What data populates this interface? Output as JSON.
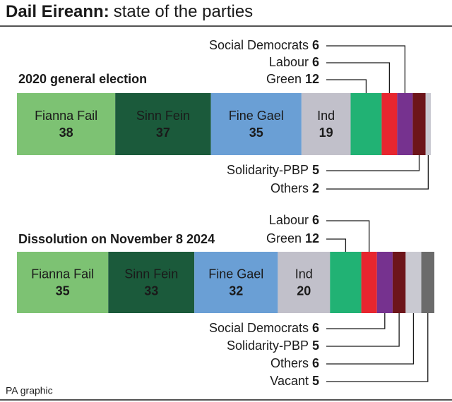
{
  "title": "Dail Eireann:",
  "title_rest": "state of the parties",
  "source": "PA graphic",
  "chart_data": [
    {
      "type": "stacked-bar",
      "title": "2020 general election",
      "categories": [
        "Fianna Fail",
        "Sinn Fein",
        "Fine Gael",
        "Ind",
        "Green",
        "Labour",
        "Social Democrats",
        "Solidarity-PBP",
        "Others"
      ],
      "values": [
        38,
        37,
        35,
        19,
        12,
        6,
        6,
        5,
        2
      ],
      "colors": [
        "#7dc273",
        "#1b5a3b",
        "#6a9fd5",
        "#c1c0ca",
        "#21b274",
        "#e7262f",
        "#76328f",
        "#6d151a",
        "#c9c9d1"
      ]
    },
    {
      "type": "stacked-bar",
      "title": "Dissolution on November 8 2024",
      "categories": [
        "Fianna Fail",
        "Sinn Fein",
        "Fine Gael",
        "Ind",
        "Green",
        "Labour",
        "Social Democrats",
        "Solidarity-PBP",
        "Others",
        "Vacant"
      ],
      "values": [
        35,
        33,
        32,
        20,
        12,
        6,
        6,
        5,
        6,
        5
      ],
      "colors": [
        "#7dc273",
        "#1b5a3b",
        "#6a9fd5",
        "#c1c0ca",
        "#21b274",
        "#e7262f",
        "#76328f",
        "#6d151a",
        "#c9c9d1",
        "#6b6b6b"
      ]
    }
  ]
}
